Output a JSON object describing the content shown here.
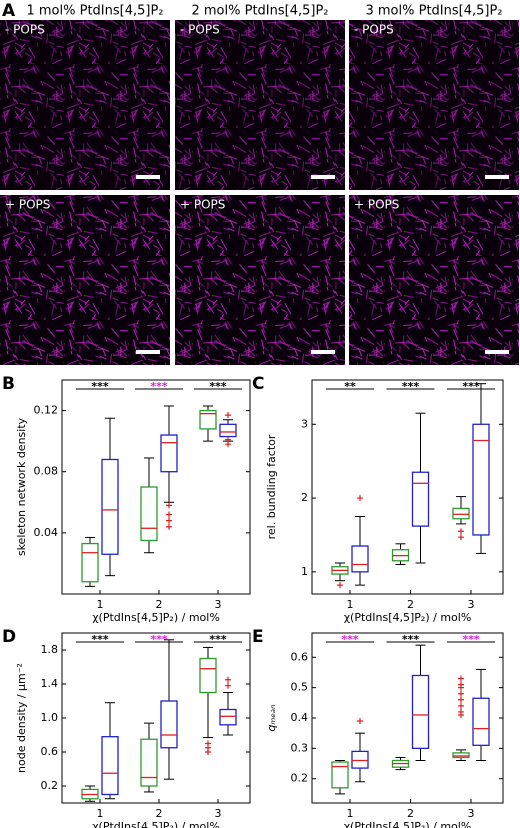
{
  "panel_a": {
    "label": "A",
    "columns": [
      "1 mol% PtdIns[4,5]P₂",
      "2 mol% PtdIns[4,5]P₂",
      "3 mol% PtdIns[4,5]P₂"
    ],
    "rows": [
      "- POPS",
      "+ POPS"
    ]
  },
  "chart_data": [
    {
      "type": "box",
      "label": "B",
      "ylabel": "skeleton network density",
      "xlabel": "χ(PtdIns[4,5]P₂) / mol%",
      "categories": [
        "1",
        "2",
        "3"
      ],
      "ylim": [
        0,
        0.14
      ],
      "yticks": [
        0.04,
        0.08,
        0.12
      ],
      "median_color": "#e02020",
      "flier_color": "#e02020",
      "annotations": [
        {
          "text": "***",
          "color": "#000000"
        },
        {
          "text": "***",
          "color": "#e020e0"
        },
        {
          "text": "***",
          "color": "#000000"
        }
      ],
      "series": [
        {
          "color": "#2e9a2e",
          "boxes": [
            {
              "whislo": 0.005,
              "q1": 0.008,
              "med": 0.027,
              "q3": 0.033,
              "whishi": 0.037,
              "fliers": []
            },
            {
              "whislo": 0.027,
              "q1": 0.035,
              "med": 0.043,
              "q3": 0.07,
              "whishi": 0.089,
              "fliers": []
            },
            {
              "whislo": 0.1,
              "q1": 0.108,
              "med": 0.118,
              "q3": 0.12,
              "whishi": 0.123,
              "fliers": []
            }
          ]
        },
        {
          "color": "#2020d0",
          "boxes": [
            {
              "whislo": 0.012,
              "q1": 0.026,
              "med": 0.055,
              "q3": 0.088,
              "whishi": 0.115,
              "fliers": []
            },
            {
              "whislo": 0.06,
              "q1": 0.08,
              "med": 0.099,
              "q3": 0.104,
              "whishi": 0.123,
              "fliers": [
                0.058,
                0.052,
                0.048,
                0.044
              ]
            },
            {
              "whislo": 0.1,
              "q1": 0.103,
              "med": 0.106,
              "q3": 0.111,
              "whishi": 0.114,
              "fliers": [
                0.117,
                0.101,
                0.098
              ]
            }
          ]
        }
      ]
    },
    {
      "type": "box",
      "label": "C",
      "ylabel": "rel. bundling factor",
      "xlabel": "χ(PtdIns[4,5]P₂) / mol%",
      "categories": [
        "1",
        "2",
        "3"
      ],
      "ylim": [
        0.7,
        3.6
      ],
      "yticks": [
        1,
        2,
        3
      ],
      "median_color": "#e02020",
      "flier_color": "#e02020",
      "annotations": [
        {
          "text": "**",
          "color": "#000000"
        },
        {
          "text": "***",
          "color": "#000000"
        },
        {
          "text": "***",
          "color": "#000000"
        }
      ],
      "series": [
        {
          "color": "#2e9a2e",
          "boxes": [
            {
              "whislo": 0.88,
              "q1": 0.97,
              "med": 1.02,
              "q3": 1.07,
              "whishi": 1.12,
              "fliers": [
                0.82
              ]
            },
            {
              "whislo": 1.1,
              "q1": 1.15,
              "med": 1.22,
              "q3": 1.3,
              "whishi": 1.38,
              "fliers": []
            },
            {
              "whislo": 1.65,
              "q1": 1.72,
              "med": 1.78,
              "q3": 1.86,
              "whishi": 2.02,
              "fliers": [
                1.55,
                1.47
              ]
            }
          ]
        },
        {
          "color": "#2020d0",
          "boxes": [
            {
              "whislo": 0.82,
              "q1": 1.0,
              "med": 1.1,
              "q3": 1.35,
              "whishi": 1.75,
              "fliers": [
                2.0
              ]
            },
            {
              "whislo": 1.12,
              "q1": 1.62,
              "med": 2.2,
              "q3": 2.35,
              "whishi": 3.15,
              "fliers": []
            },
            {
              "whislo": 1.25,
              "q1": 1.5,
              "med": 2.78,
              "q3": 3.0,
              "whishi": 3.55,
              "fliers": []
            }
          ]
        }
      ]
    },
    {
      "type": "box",
      "label": "D",
      "ylabel": "node density / µm⁻²",
      "xlabel": "χ(PtdIns[4,5]P₂) / mol%",
      "categories": [
        "1",
        "2",
        "3"
      ],
      "ylim": [
        0,
        2.0
      ],
      "yticks": [
        0.2,
        0.6,
        {
          "value": 1,
          "label": "1.0"
        },
        1.4,
        1.8
      ],
      "median_color": "#e02020",
      "flier_color": "#e02020",
      "annotations": [
        {
          "text": "***",
          "color": "#000000"
        },
        {
          "text": "***",
          "color": "#e020e0"
        },
        {
          "text": "***",
          "color": "#000000"
        }
      ],
      "series": [
        {
          "color": "#2e9a2e",
          "boxes": [
            {
              "whislo": 0.02,
              "q1": 0.05,
              "med": 0.1,
              "q3": 0.16,
              "whishi": 0.2,
              "fliers": []
            },
            {
              "whislo": 0.13,
              "q1": 0.2,
              "med": 0.3,
              "q3": 0.75,
              "whishi": 0.94,
              "fliers": []
            },
            {
              "whislo": 0.77,
              "q1": 1.3,
              "med": 1.58,
              "q3": 1.7,
              "whishi": 1.83,
              "fliers": [
                0.7,
                0.65,
                0.6
              ]
            }
          ]
        },
        {
          "color": "#2020d0",
          "boxes": [
            {
              "whislo": 0.05,
              "q1": 0.1,
              "med": 0.35,
              "q3": 0.78,
              "whishi": 1.18,
              "fliers": []
            },
            {
              "whislo": 0.28,
              "q1": 0.65,
              "med": 0.8,
              "q3": 1.2,
              "whishi": 1.92,
              "fliers": []
            },
            {
              "whislo": 0.8,
              "q1": 0.92,
              "med": 1.02,
              "q3": 1.1,
              "whishi": 1.3,
              "fliers": [
                1.38,
                1.45
              ]
            }
          ]
        }
      ]
    },
    {
      "type": "box",
      "label": "E",
      "ylabel": "qₘₑₐₙ",
      "xlabel": "χ(PtdIns[4,5]P₂) / mol%",
      "categories": [
        "1",
        "2",
        "3"
      ],
      "ylim": [
        0.12,
        0.68
      ],
      "yticks": [
        0.2,
        0.3,
        0.4,
        0.5,
        0.6
      ],
      "median_color": "#e02020",
      "flier_color": "#e02020",
      "annotations": [
        {
          "text": "***",
          "color": "#e020e0"
        },
        {
          "text": "***",
          "color": "#000000"
        },
        {
          "text": "***",
          "color": "#e020e0"
        }
      ],
      "series": [
        {
          "color": "#2e9a2e",
          "boxes": [
            {
              "whislo": 0.15,
              "q1": 0.17,
              "med": 0.24,
              "q3": 0.255,
              "whishi": 0.26,
              "fliers": []
            },
            {
              "whislo": 0.23,
              "q1": 0.238,
              "med": 0.25,
              "q3": 0.26,
              "whishi": 0.27,
              "fliers": []
            },
            {
              "whislo": 0.26,
              "q1": 0.27,
              "med": 0.275,
              "q3": 0.285,
              "whishi": 0.295,
              "fliers": [
                0.53,
                0.51,
                0.5,
                0.48,
                0.46,
                0.44,
                0.42,
                0.41
              ]
            }
          ]
        },
        {
          "color": "#2020d0",
          "boxes": [
            {
              "whislo": 0.19,
              "q1": 0.235,
              "med": 0.26,
              "q3": 0.29,
              "whishi": 0.35,
              "fliers": [
                0.39
              ]
            },
            {
              "whislo": 0.26,
              "q1": 0.3,
              "med": 0.41,
              "q3": 0.54,
              "whishi": 0.64,
              "fliers": []
            },
            {
              "whislo": 0.26,
              "q1": 0.31,
              "med": 0.365,
              "q3": 0.465,
              "whishi": 0.56,
              "fliers": []
            }
          ]
        }
      ]
    }
  ]
}
